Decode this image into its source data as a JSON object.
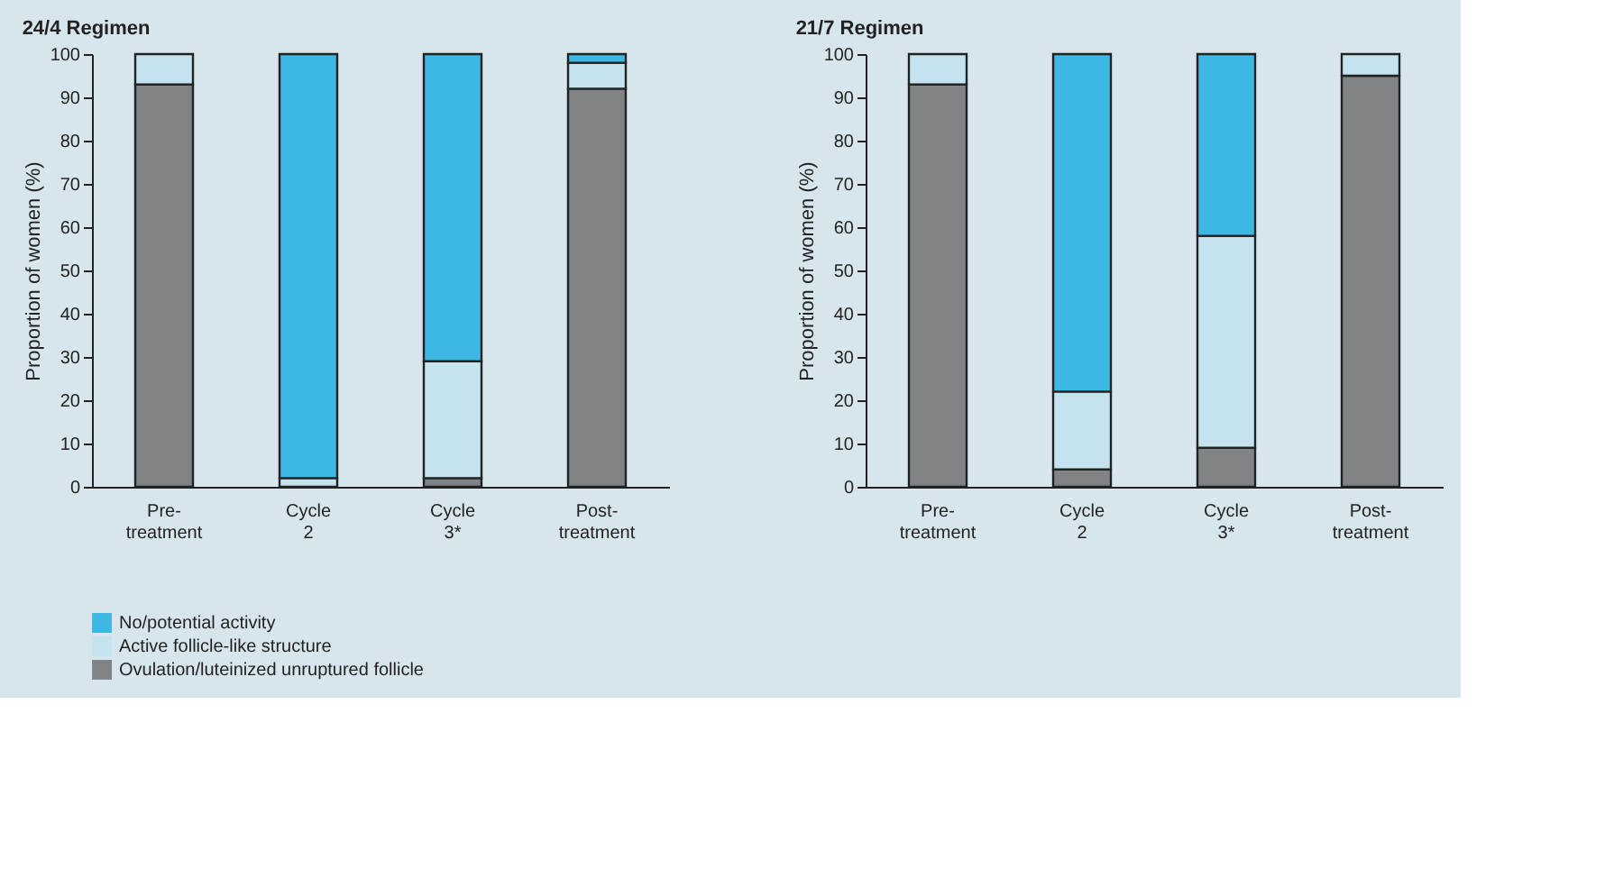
{
  "chart_data": [
    {
      "type": "bar",
      "title": "24/4 Regimen",
      "ylabel": "Proportion of women (%)",
      "categories": [
        "Pre-treatment",
        "Cycle 2",
        "Cycle 3*",
        "Post-treatment"
      ],
      "stacked": true,
      "ylim": [
        0,
        100
      ],
      "yticks": [
        0,
        10,
        20,
        30,
        40,
        50,
        60,
        70,
        80,
        90,
        100
      ],
      "grid": false,
      "legend": "bottom left",
      "series": [
        {
          "name": "Ovulation/luteinized unruptured follicle",
          "color": "#7f8385",
          "values": [
            93,
            0,
            2,
            92
          ]
        },
        {
          "name": "Active follicle-like structure",
          "color": "#c4e3ef",
          "values": [
            7,
            2,
            27,
            6
          ]
        },
        {
          "name": "No/potential activity",
          "color": "#3db8e3",
          "values": [
            0,
            98,
            71,
            2
          ]
        }
      ]
    },
    {
      "type": "bar",
      "title": "21/7 Regimen",
      "ylabel": "Proportion of women (%)",
      "categories": [
        "Pre-treatment",
        "Cycle 2",
        "Cycle 3*",
        "Post-treatment"
      ],
      "stacked": true,
      "ylim": [
        0,
        100
      ],
      "yticks": [
        0,
        10,
        20,
        30,
        40,
        50,
        60,
        70,
        80,
        90,
        100
      ],
      "grid": false,
      "legend": "bottom left",
      "series": [
        {
          "name": "Ovulation/luteinized unruptured follicle",
          "color": "#7f8385",
          "values": [
            93,
            4,
            9,
            95
          ]
        },
        {
          "name": "Active follicle-like structure",
          "color": "#c4e3ef",
          "values": [
            7,
            18,
            49,
            5
          ]
        },
        {
          "name": "No/potential activity",
          "color": "#3db8e3",
          "values": [
            0,
            78,
            42,
            0
          ]
        }
      ]
    }
  ]
}
